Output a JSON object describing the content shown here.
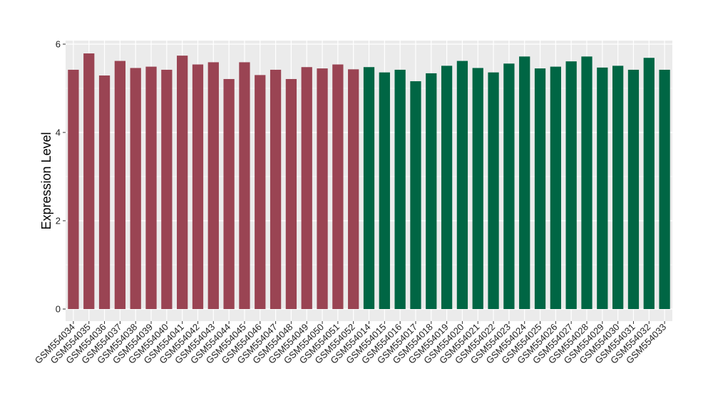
{
  "chart_data": {
    "type": "bar",
    "title": "",
    "xlabel": "",
    "ylabel": "Expression Level",
    "ylim": [
      0,
      6.1
    ],
    "yticks": [
      0,
      2,
      4,
      6
    ],
    "grid": true,
    "panel_color": "#EBEBEB",
    "grid_color": "#FFFFFF",
    "groups": [
      {
        "color": "#9A4453",
        "count": 19
      },
      {
        "color": "#006644",
        "count": 20
      }
    ],
    "categories": [
      "GSM554034",
      "GSM554035",
      "GSM554036",
      "GSM554037",
      "GSM554038",
      "GSM554039",
      "GSM554040",
      "GSM554041",
      "GSM554042",
      "GSM554043",
      "GSM554044",
      "GSM554045",
      "GSM554046",
      "GSM554047",
      "GSM554048",
      "GSM554049",
      "GSM554050",
      "GSM554051",
      "GSM554052",
      "GSM554014",
      "GSM554015",
      "GSM554016",
      "GSM554017",
      "GSM554018",
      "GSM554019",
      "GSM554020",
      "GSM554021",
      "GSM554022",
      "GSM554023",
      "GSM554024",
      "GSM554025",
      "GSM554026",
      "GSM554027",
      "GSM554028",
      "GSM554029",
      "GSM554030",
      "GSM554031",
      "GSM554032",
      "GSM554033"
    ],
    "values": [
      5.42,
      5.79,
      5.29,
      5.62,
      5.46,
      5.49,
      5.42,
      5.74,
      5.54,
      5.59,
      5.21,
      5.59,
      5.3,
      5.42,
      5.21,
      5.48,
      5.45,
      5.54,
      5.43,
      5.48,
      5.36,
      5.42,
      5.16,
      5.34,
      5.51,
      5.62,
      5.46,
      5.36,
      5.56,
      5.72,
      5.45,
      5.49,
      5.61,
      5.72,
      5.47,
      5.51,
      5.42,
      5.69,
      5.42
    ]
  }
}
